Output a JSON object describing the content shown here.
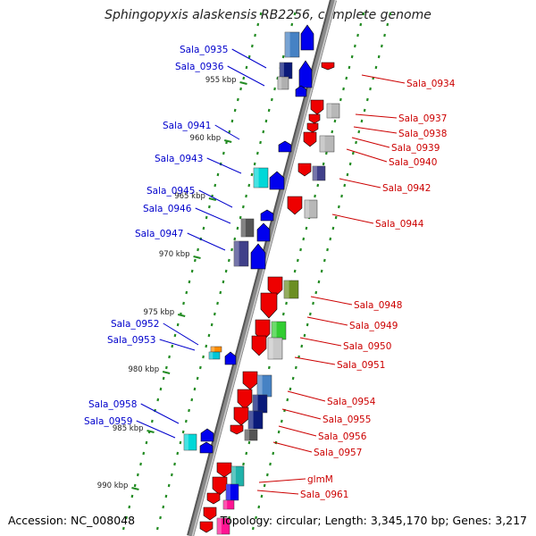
{
  "title": "Sphingopyxis alaskensis RB2256, complete genome",
  "accession": "Accession: NC_008048",
  "summary": "Topology: circular; Length: 3,345,170 bp; Genes: 3,217",
  "colors": {
    "backbone": "#8a8a8a",
    "dots": "#228b22",
    "forward_label": "#0000cc",
    "reverse_label": "#cc0000",
    "forward_gene": "#0000ee",
    "reverse_gene": "#ee0000"
  },
  "scale_labels": [
    "955 kbp",
    "960 kbp",
    "965 kbp",
    "970 kbp",
    "975 kbp",
    "980 kbp",
    "985 kbp",
    "990 kbp"
  ],
  "forward_labels": [
    "Sala_0935",
    "Sala_0936",
    "Sala_0941",
    "Sala_0943",
    "Sala_0945",
    "Sala_0946",
    "Sala_0947",
    "Sala_0952",
    "Sala_0953",
    "Sala_0958",
    "Sala_0959"
  ],
  "reverse_labels": [
    "Sala_0934",
    "Sala_0937",
    "Sala_0938",
    "Sala_0939",
    "Sala_0940",
    "Sala_0942",
    "Sala_0944",
    "Sala_0948",
    "Sala_0949",
    "Sala_0950",
    "Sala_0951",
    "Sala_0954",
    "Sala_0955",
    "Sala_0956",
    "Sala_0957",
    "glmM",
    "Sala_0961"
  ]
}
